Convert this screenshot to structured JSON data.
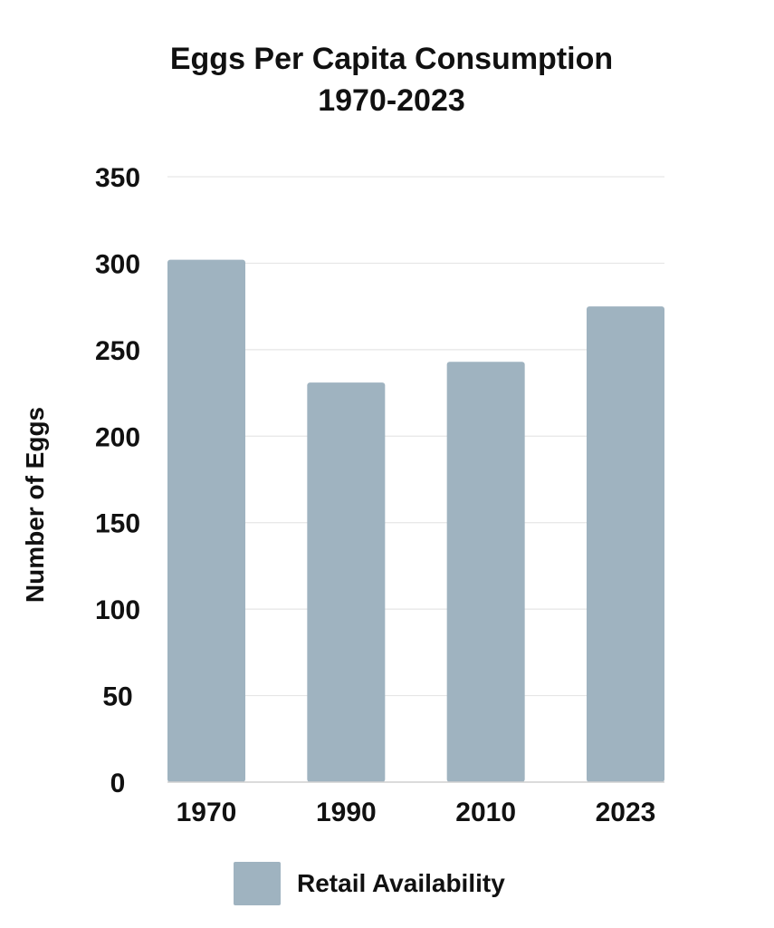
{
  "chart_data": {
    "type": "bar",
    "title": "Eggs Per Capita Consumption",
    "subtitle": "1970-2023",
    "xlabel": "",
    "ylabel": "Number of Eggs",
    "categories": [
      "1970",
      "1990",
      "2010",
      "2023"
    ],
    "series": [
      {
        "name": "Retail Availability",
        "values": [
          302,
          231,
          243,
          275
        ],
        "color": "#9fb3c0"
      }
    ],
    "ylim": [
      0,
      350
    ],
    "yticks": [
      0,
      50,
      100,
      150,
      200,
      250,
      300,
      350
    ],
    "grid": true,
    "legend_position": "bottom"
  }
}
